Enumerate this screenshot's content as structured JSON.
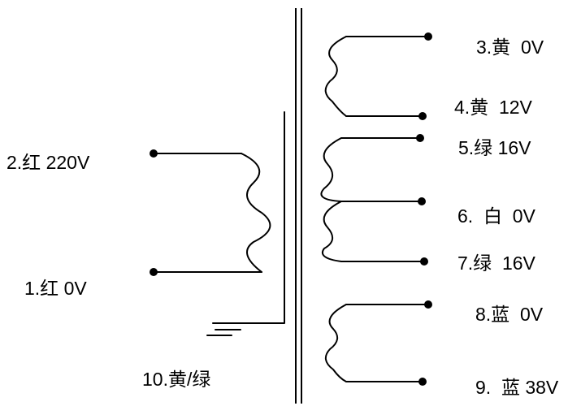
{
  "primary": {
    "pin2": "2.红 220V",
    "pin1": "1.红 0V",
    "ground": "10.黄/绿"
  },
  "secondary": {
    "pin3": "3.黄  0V",
    "pin4": "4.黄  12V",
    "pin5": "5.绿 16V",
    "pin6": "6.  白  0V",
    "pin7": "7.绿  16V",
    "pin8": "8.蓝  0V",
    "pin9": "9.  蓝 38V"
  }
}
